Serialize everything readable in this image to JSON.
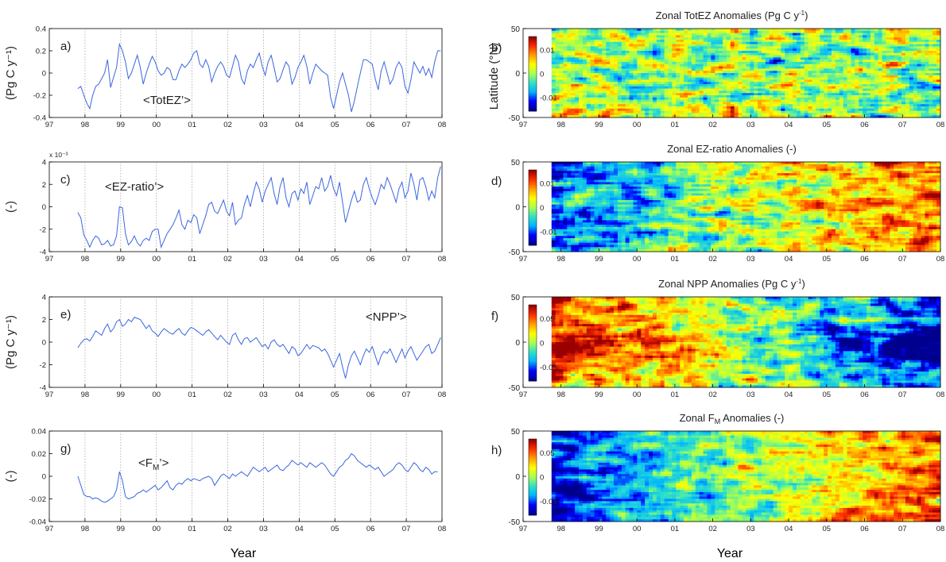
{
  "figure": {
    "x_label": "Year",
    "x_ticks": [
      "97",
      "98",
      "99",
      "00",
      "01",
      "02",
      "03",
      "04",
      "05",
      "06",
      "07",
      "08"
    ]
  },
  "colors": {
    "line": "#3a66e0",
    "axis": "#000000",
    "grid": "#9a9a9a",
    "colormap": [
      "#00008f",
      "#0000ff",
      "#00b4ff",
      "#30e0c8",
      "#a8ff50",
      "#ffff00",
      "#ffa000",
      "#ff3000",
      "#9a0000"
    ]
  },
  "chart_data": [
    {
      "type": "line",
      "panel": "a)",
      "annotation": "<TotEZ’>",
      "ylabel": "(Pg C y⁻¹)",
      "ylim": [
        -0.4,
        0.4
      ],
      "yticks": [
        "0.4",
        "0.2",
        "0",
        "-0.2",
        "-0.4"
      ],
      "xlim": [
        97,
        108
      ],
      "x_start": 97.8,
      "x_step": 0.0833,
      "grid": "vertical dotted",
      "values": [
        -0.14,
        -0.12,
        -0.2,
        -0.27,
        -0.32,
        -0.2,
        -0.12,
        -0.1,
        -0.05,
        0.0,
        0.12,
        -0.13,
        -0.04,
        0.05,
        0.26,
        0.2,
        0.1,
        -0.05,
        0.0,
        0.08,
        0.16,
        0.05,
        -0.1,
        0.0,
        0.08,
        0.15,
        0.1,
        0.02,
        -0.02,
        0.0,
        0.05,
        0.03,
        -0.06,
        -0.06,
        0.02,
        0.08,
        0.05,
        0.08,
        0.12,
        0.18,
        0.2,
        0.08,
        0.05,
        0.12,
        0.06,
        -0.08,
        0.0,
        0.06,
        0.1,
        0.06,
        -0.02,
        -0.04,
        0.06,
        0.16,
        0.1,
        -0.05,
        -0.1,
        0.02,
        0.08,
        0.05,
        0.12,
        0.18,
        0.06,
        -0.02,
        0.1,
        0.16,
        0.05,
        -0.08,
        -0.05,
        0.03,
        0.1,
        0.06,
        -0.1,
        -0.04,
        0.05,
        0.1,
        0.16,
        0.06,
        -0.1,
        0.0,
        0.08,
        0.05,
        0.02,
        0.0,
        -0.02,
        -0.22,
        -0.32,
        -0.2,
        -0.08,
        0.0,
        -0.1,
        -0.2,
        -0.35,
        -0.25,
        -0.12,
        0.0,
        0.12,
        0.12,
        0.1,
        0.08,
        -0.05,
        -0.15,
        0.02,
        0.1,
        0.0,
        -0.1,
        -0.05,
        0.05,
        0.1,
        0.05,
        -0.12,
        -0.18,
        -0.06,
        0.1,
        0.05,
        0.0,
        0.06,
        -0.02,
        0.04,
        -0.04,
        0.1,
        0.2,
        0.2
      ]
    },
    {
      "type": "line",
      "panel": "c)",
      "annotation": "<EZ-ratio’>",
      "ylabel": "(-)",
      "multiplier": "x 10⁻³",
      "ylim": [
        -4,
        4
      ],
      "yticks": [
        "4",
        "2",
        "0",
        "-2",
        "-4"
      ],
      "xlim": [
        97,
        108
      ],
      "x_start": 97.8,
      "x_step": 0.0833,
      "grid": "vertical dotted",
      "values": [
        -0.5,
        -1.0,
        -2.5,
        -3.0,
        -3.6,
        -3.0,
        -2.6,
        -2.8,
        -3.4,
        -3.3,
        -3.0,
        -3.5,
        -3.4,
        -2.6,
        0.0,
        -0.1,
        -2.4,
        -3.4,
        -3.1,
        -2.6,
        -3.2,
        -3.5,
        -3.0,
        -2.8,
        -3.0,
        -2.2,
        -2.0,
        -2.0,
        -3.6,
        -3.0,
        -2.4,
        -2.0,
        -1.6,
        -1.0,
        -0.3,
        -1.6,
        -2.0,
        -1.2,
        -1.4,
        -0.7,
        -1.0,
        -2.4,
        -1.6,
        -0.8,
        0.2,
        0.4,
        -0.4,
        -0.6,
        0.0,
        0.6,
        -0.4,
        -0.8,
        0.4,
        -1.6,
        -1.2,
        -1.0,
        0.2,
        1.0,
        0.0,
        1.2,
        2.2,
        1.6,
        0.4,
        1.4,
        2.0,
        2.6,
        1.2,
        0.2,
        1.8,
        2.6,
        0.8,
        0.0,
        1.2,
        1.4,
        0.6,
        1.6,
        1.2,
        2.2,
        0.2,
        1.0,
        1.8,
        1.6,
        2.6,
        1.4,
        1.8,
        2.8,
        1.6,
        1.0,
        2.2,
        0.4,
        -1.4,
        -0.4,
        0.6,
        1.4,
        0.4,
        0.6,
        2.0,
        2.6,
        1.6,
        0.8,
        0.2,
        1.0,
        2.0,
        1.6,
        2.6,
        2.0,
        1.2,
        0.4,
        1.6,
        2.2,
        0.8,
        1.4,
        3.0,
        2.0,
        0.6,
        2.4,
        2.6,
        1.8,
        0.6,
        1.4,
        0.8,
        2.6,
        3.6
      ]
    },
    {
      "type": "line",
      "panel": "e)",
      "annotation": "<NPP’>",
      "ylabel": "(Pg C y⁻¹)",
      "ylim": [
        -4,
        4
      ],
      "yticks": [
        "4",
        "2",
        "0",
        "-2",
        "-4"
      ],
      "xlim": [
        97,
        108
      ],
      "x_start": 97.8,
      "x_step": 0.0833,
      "grid": "vertical dotted",
      "values": [
        -0.5,
        -0.1,
        0.2,
        0.3,
        0.1,
        0.5,
        1.0,
        0.8,
        0.6,
        1.2,
        1.6,
        0.9,
        1.2,
        1.8,
        2.0,
        1.4,
        1.6,
        2.0,
        1.8,
        2.2,
        2.1,
        2.0,
        1.6,
        1.2,
        1.5,
        1.0,
        0.8,
        0.5,
        0.9,
        1.2,
        1.0,
        0.8,
        0.7,
        1.0,
        1.2,
        0.8,
        0.6,
        1.0,
        1.3,
        1.2,
        1.0,
        0.8,
        0.6,
        0.9,
        1.1,
        0.8,
        0.5,
        0.2,
        0.6,
        0.3,
        0.0,
        -0.2,
        0.6,
        0.8,
        0.2,
        -0.2,
        0.3,
        0.4,
        0.0,
        0.2,
        0.4,
        0.0,
        -0.4,
        -0.2,
        -0.6,
        0.0,
        0.2,
        -0.2,
        -0.4,
        -0.2,
        -0.6,
        -1.0,
        -0.4,
        -0.6,
        -1.2,
        -1.0,
        -0.6,
        -0.2,
        -0.6,
        -0.3,
        -0.4,
        -0.5,
        -0.8,
        -0.6,
        -1.0,
        -1.6,
        -2.2,
        -1.6,
        -1.0,
        -2.2,
        -3.2,
        -2.0,
        -1.2,
        -0.8,
        -1.4,
        -2.0,
        -1.2,
        -0.6,
        -0.9,
        -0.4,
        -1.2,
        -2.0,
        -1.2,
        -0.8,
        -1.0,
        -0.6,
        -1.2,
        -1.8,
        -1.2,
        -0.6,
        -1.4,
        -0.8,
        -0.4,
        -1.0,
        -1.6,
        -1.2,
        -0.8,
        -0.4,
        -0.2,
        -1.0,
        -0.8,
        -0.2,
        0.4
      ]
    },
    {
      "type": "line",
      "panel": "g)",
      "annotation": "<F",
      "annotation_sub": "M",
      "annotation_end": "’>",
      "ylabel": "(-)",
      "ylim": [
        -0.04,
        0.04
      ],
      "yticks": [
        "0.04",
        "0.02",
        "0",
        "-0.02",
        "-0.04"
      ],
      "xlim": [
        97,
        108
      ],
      "x_start": 97.8,
      "x_step": 0.0833,
      "grid": "vertical dotted",
      "values": [
        0.0,
        -0.008,
        -0.016,
        -0.018,
        -0.018,
        -0.02,
        -0.019,
        -0.02,
        -0.022,
        -0.023,
        -0.022,
        -0.02,
        -0.018,
        -0.012,
        0.004,
        -0.004,
        -0.018,
        -0.02,
        -0.019,
        -0.018,
        -0.015,
        -0.014,
        -0.012,
        -0.014,
        -0.012,
        -0.01,
        -0.008,
        -0.012,
        -0.01,
        -0.007,
        -0.004,
        -0.01,
        -0.012,
        -0.008,
        -0.006,
        -0.007,
        -0.004,
        -0.002,
        -0.004,
        -0.002,
        -0.003,
        -0.004,
        -0.002,
        -0.001,
        0.0,
        -0.002,
        -0.008,
        -0.004,
        0.0,
        0.002,
        0.0,
        -0.002,
        0.002,
        0.0,
        0.002,
        0.004,
        0.002,
        0.0,
        0.004,
        0.008,
        0.006,
        0.004,
        0.006,
        0.008,
        0.004,
        0.006,
        0.008,
        0.01,
        0.006,
        0.005,
        0.008,
        0.01,
        0.014,
        0.012,
        0.01,
        0.012,
        0.01,
        0.008,
        0.012,
        0.01,
        0.008,
        0.01,
        0.012,
        0.01,
        0.006,
        0.002,
        0.0,
        0.004,
        0.008,
        0.01,
        0.014,
        0.016,
        0.02,
        0.018,
        0.014,
        0.012,
        0.01,
        0.008,
        0.01,
        0.008,
        0.006,
        0.008,
        0.004,
        0.0,
        0.002,
        0.004,
        0.006,
        0.01,
        0.012,
        0.01,
        0.006,
        0.004,
        0.008,
        0.012,
        0.01,
        0.006,
        0.004,
        0.008,
        0.006,
        0.002,
        0.004,
        0.004
      ]
    },
    {
      "type": "heatmap",
      "panel": "b)",
      "title": "Zonal TotEZ Anomalies (Pg C y",
      "title_sup": "-1",
      "title_end": ")",
      "ylabel": "Latitude (°N)",
      "ylim": [
        -50,
        50
      ],
      "yticks": [
        "50",
        "0",
        "-50"
      ],
      "xlim": [
        97,
        108
      ],
      "x_start": 97.75,
      "colorbar_ticks": [
        "0.01",
        "0",
        "-0.01"
      ],
      "clim": [
        -0.015,
        0.015
      ],
      "seed": 11,
      "trend": 0.0,
      "equator_bias": 0.0,
      "noise": 0.9
    },
    {
      "type": "heatmap",
      "panel": "d)",
      "title": "Zonal EZ-ratio Anomalies (-)",
      "ylabel": "",
      "ylim": [
        -50,
        50
      ],
      "yticks": [
        "50",
        "0",
        "-50"
      ],
      "xlim": [
        97,
        108
      ],
      "x_start": 97.75,
      "colorbar_ticks": [
        "0.01",
        "0",
        "-0.01"
      ],
      "clim": [
        -0.015,
        0.015
      ],
      "seed": 23,
      "trend": 0.9,
      "equator_bias": 0.0,
      "noise": 0.8
    },
    {
      "type": "heatmap",
      "panel": "f)",
      "title": "Zonal NPP Anomalies (Pg C y",
      "title_sup": "-1",
      "title_end": ")",
      "ylabel": "",
      "ylim": [
        -50,
        50
      ],
      "yticks": [
        "50",
        "0",
        "-50"
      ],
      "xlim": [
        97,
        108
      ],
      "x_start": 97.75,
      "colorbar_ticks": [
        "0.05",
        "0",
        "-0.05"
      ],
      "clim": [
        -0.06,
        0.06
      ],
      "seed": 37,
      "trend": -1.1,
      "equator_bias": 0.6,
      "noise": 0.8
    },
    {
      "type": "heatmap",
      "panel": "h)",
      "title": "Zonal F",
      "title_sub": "M",
      "title_end": " Anomalies (-)",
      "ylabel": "",
      "ylim": [
        -50,
        50
      ],
      "yticks": [
        "50",
        "0",
        "-50"
      ],
      "xlim": [
        97,
        108
      ],
      "x_start": 97.75,
      "colorbar_ticks": [
        "0.05",
        "0",
        "-0.05"
      ],
      "clim": [
        -0.06,
        0.06
      ],
      "seed": 53,
      "trend": 1.2,
      "equator_bias": 0.0,
      "noise": 0.7
    }
  ]
}
